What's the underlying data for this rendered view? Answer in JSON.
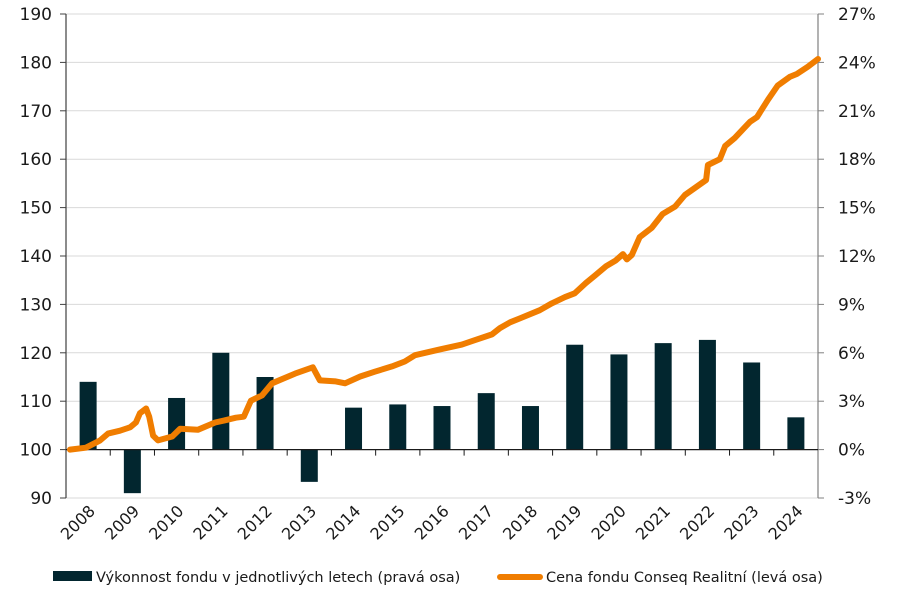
{
  "chart_data": {
    "type": "bar+line",
    "title": "",
    "categories": [
      "2008",
      "2009",
      "2010",
      "2011",
      "2012",
      "2013",
      "2014",
      "2015",
      "2016",
      "2017",
      "2018",
      "2019",
      "2020",
      "2021",
      "2022",
      "2023",
      "2024"
    ],
    "left_axis": {
      "label": "",
      "ylim": [
        90,
        190
      ],
      "ticks": [
        90,
        100,
        110,
        120,
        130,
        140,
        150,
        160,
        170,
        180,
        190
      ],
      "tick_labels": [
        "90",
        "100",
        "110",
        "120",
        "130",
        "140",
        "150",
        "160",
        "170",
        "180",
        "190"
      ]
    },
    "right_axis": {
      "label": "",
      "ylim": [
        -3,
        27
      ],
      "ticks": [
        -3,
        0,
        3,
        6,
        9,
        12,
        15,
        18,
        21,
        24,
        27
      ],
      "tick_labels": [
        "-3%",
        "0%",
        "3%",
        "6%",
        "9%",
        "12%",
        "15%",
        "18%",
        "21%",
        "24%",
        "27%"
      ]
    },
    "grid": true,
    "legend_position": "bottom",
    "series": [
      {
        "name": "Výkonnost fondu v jednotlivých letech (pravá osa)",
        "type": "bar",
        "axis": "right",
        "color": "#02262f",
        "values": [
          4.2,
          -2.7,
          3.2,
          6.0,
          4.5,
          -2.0,
          2.6,
          2.8,
          2.7,
          3.5,
          2.7,
          6.5,
          5.9,
          6.6,
          6.8,
          5.4,
          2.0
        ]
      },
      {
        "name": "Cena fondu Conseq Realitní (levá osa)",
        "type": "line",
        "axis": "left",
        "color": "#f07d00",
        "points": [
          [
            0.09,
            100.0
          ],
          [
            0.45,
            100.4
          ],
          [
            0.77,
            101.9
          ],
          [
            0.95,
            103.3
          ],
          [
            1.22,
            103.9
          ],
          [
            1.45,
            104.6
          ],
          [
            1.58,
            105.6
          ],
          [
            1.67,
            107.5
          ],
          [
            1.81,
            108.5
          ],
          [
            1.88,
            106.8
          ],
          [
            1.97,
            102.9
          ],
          [
            2.08,
            101.9
          ],
          [
            2.4,
            102.7
          ],
          [
            2.58,
            104.3
          ],
          [
            2.98,
            104.1
          ],
          [
            3.37,
            105.6
          ],
          [
            3.57,
            106.0
          ],
          [
            3.84,
            106.6
          ],
          [
            4.02,
            106.8
          ],
          [
            4.18,
            110.1
          ],
          [
            4.43,
            111.2
          ],
          [
            4.66,
            113.7
          ],
          [
            5.18,
            115.7
          ],
          [
            5.58,
            117.0
          ],
          [
            5.74,
            114.3
          ],
          [
            6.1,
            114.1
          ],
          [
            6.31,
            113.7
          ],
          [
            6.65,
            115.1
          ],
          [
            6.98,
            116.1
          ],
          [
            7.37,
            117.2
          ],
          [
            7.66,
            118.2
          ],
          [
            7.89,
            119.5
          ],
          [
            8.45,
            120.7
          ],
          [
            8.95,
            121.7
          ],
          [
            9.24,
            122.6
          ],
          [
            9.63,
            123.8
          ],
          [
            9.81,
            125.1
          ],
          [
            10.04,
            126.3
          ],
          [
            10.26,
            127.1
          ],
          [
            10.71,
            128.8
          ],
          [
            10.98,
            130.2
          ],
          [
            11.28,
            131.5
          ],
          [
            11.5,
            132.3
          ],
          [
            11.75,
            134.4
          ],
          [
            11.96,
            136.0
          ],
          [
            12.21,
            137.9
          ],
          [
            12.43,
            139.1
          ],
          [
            12.59,
            140.4
          ],
          [
            12.68,
            139.3
          ],
          [
            12.79,
            140.2
          ],
          [
            12.97,
            143.9
          ],
          [
            13.24,
            145.8
          ],
          [
            13.49,
            148.7
          ],
          [
            13.77,
            150.2
          ],
          [
            13.99,
            152.6
          ],
          [
            14.47,
            155.7
          ],
          [
            14.51,
            158.8
          ],
          [
            14.78,
            160.0
          ],
          [
            14.9,
            162.7
          ],
          [
            15.12,
            164.4
          ],
          [
            15.46,
            167.7
          ],
          [
            15.62,
            168.7
          ],
          [
            15.87,
            172.3
          ],
          [
            16.09,
            175.2
          ],
          [
            16.36,
            177.0
          ],
          [
            16.52,
            177.6
          ],
          [
            16.77,
            179.1
          ],
          [
            17.0,
            180.7
          ]
        ]
      }
    ]
  }
}
